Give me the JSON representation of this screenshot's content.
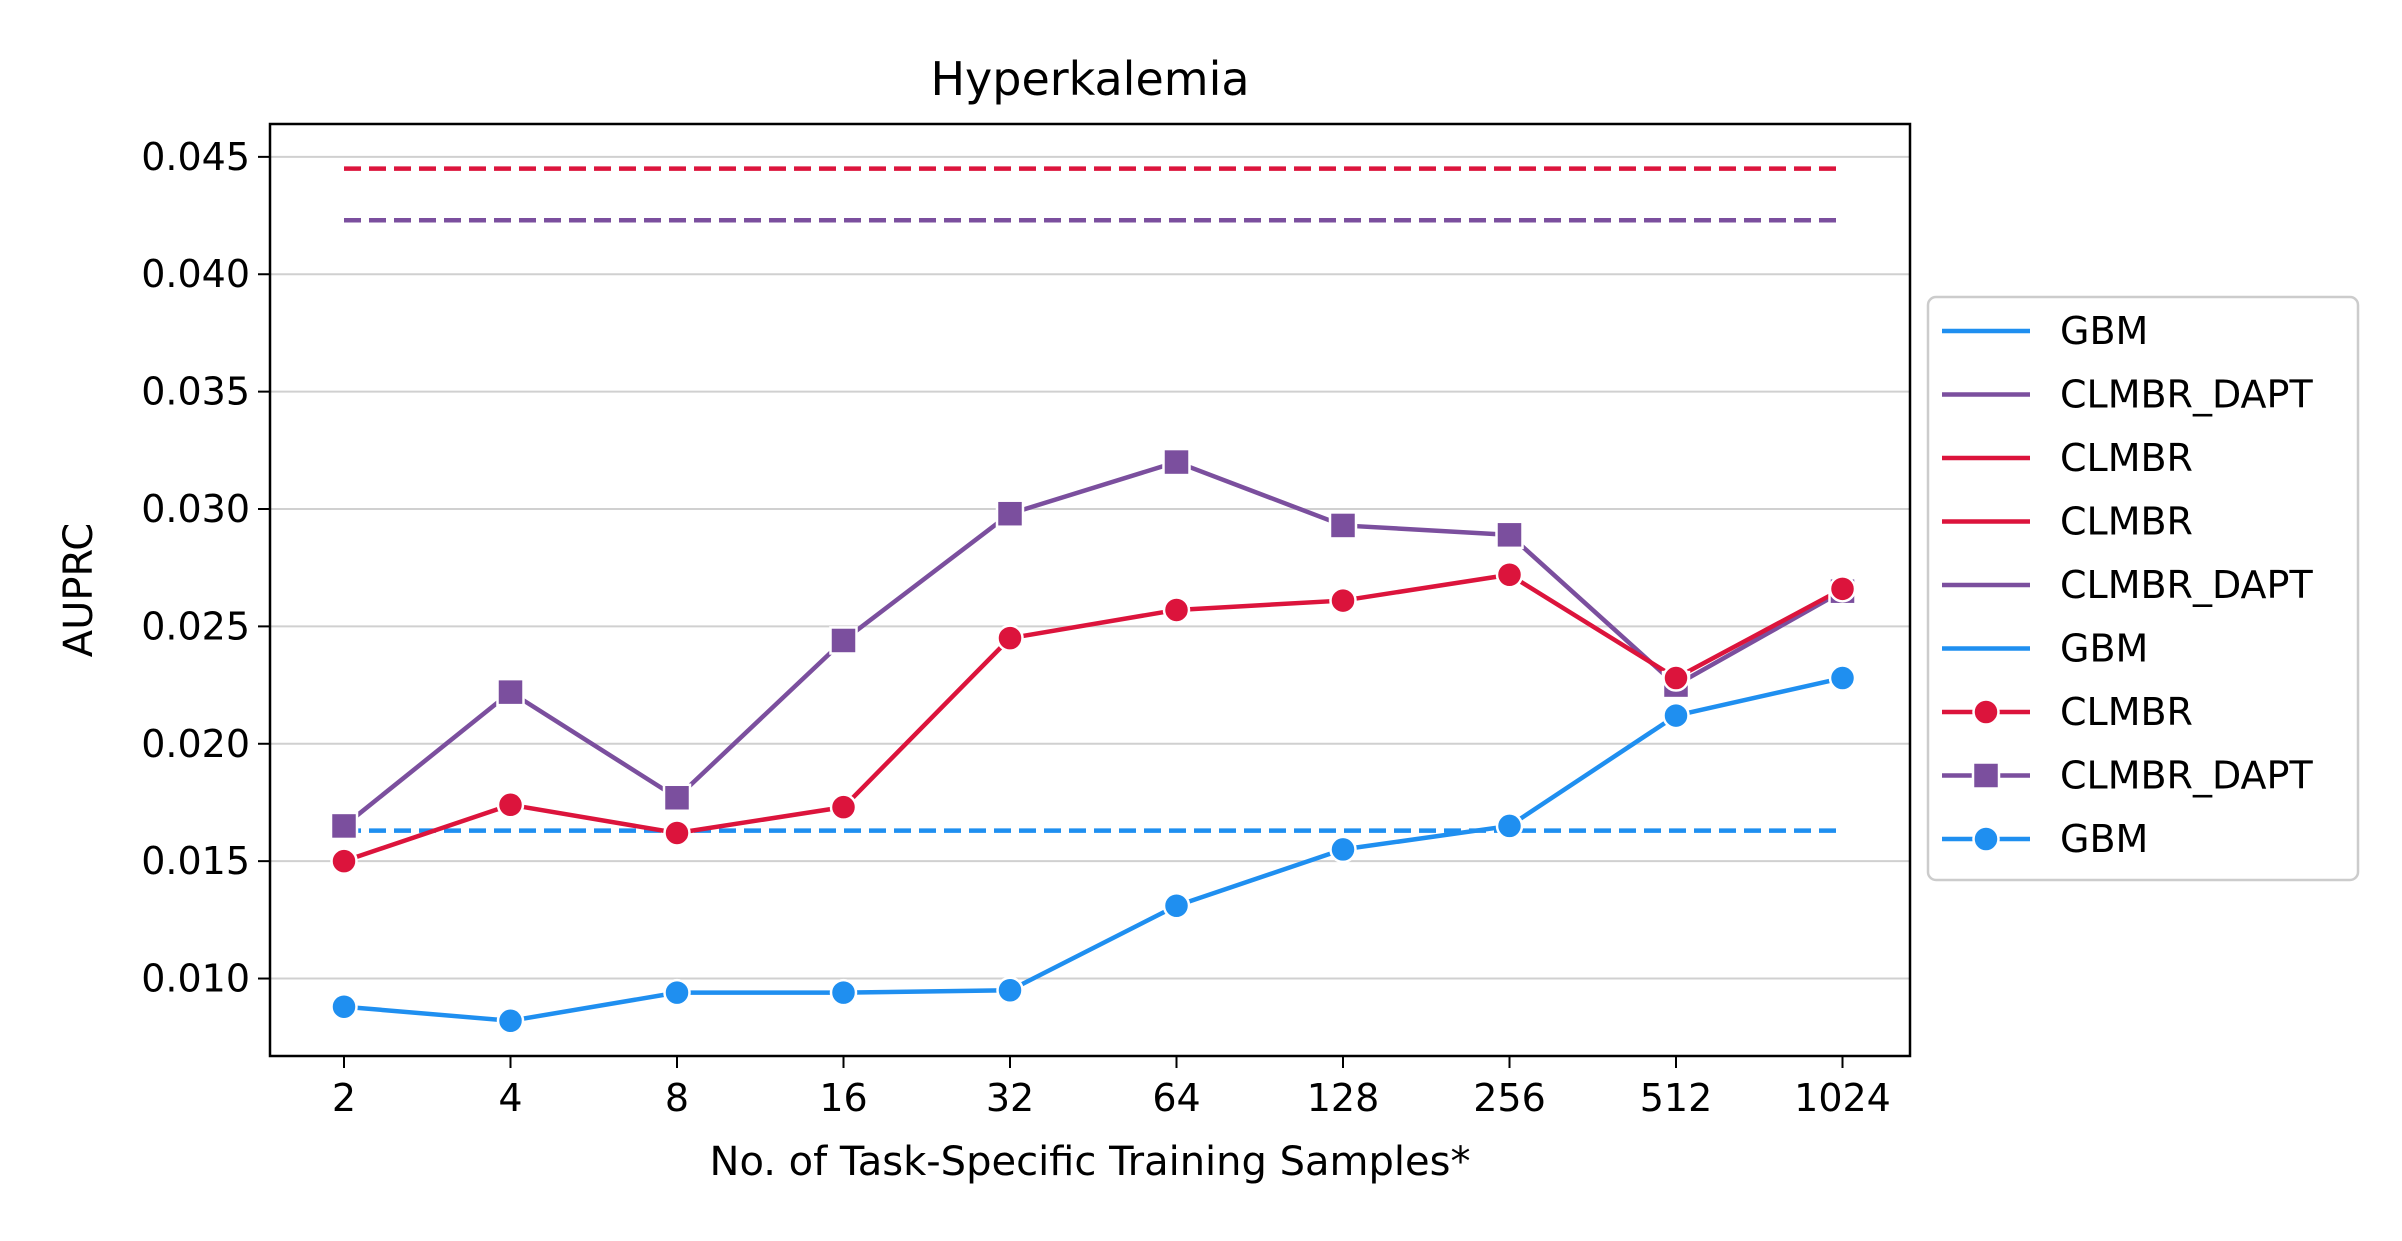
{
  "chart_data": {
    "type": "line",
    "title": "Hyperkalemia",
    "xlabel": "No. of Task-Specific Training Samples*",
    "ylabel": "AUPRC",
    "categories": [
      "2",
      "4",
      "8",
      "16",
      "32",
      "64",
      "128",
      "256",
      "512",
      "1024"
    ],
    "ylim": [
      0.0067,
      0.0464
    ],
    "y_ticks": [
      "0.010",
      "0.015",
      "0.020",
      "0.025",
      "0.030",
      "0.035",
      "0.040",
      "0.045"
    ],
    "grid": "horizontal",
    "legend_position": "right",
    "colors": {
      "GBM": "#1f8ff0",
      "CLMBR": "#dc143c",
      "CLMBR_DAPT": "#7b4f9e"
    },
    "reference_lines": [
      {
        "model": "CLMBR",
        "value": 0.0445
      },
      {
        "model": "CLMBR_DAPT",
        "value": 0.0423
      },
      {
        "model": "GBM",
        "value": 0.0163
      }
    ],
    "series": [
      {
        "name": "CLMBR_DAPT",
        "marker": "square",
        "values": [
          0.0165,
          0.0222,
          0.0177,
          0.0244,
          0.0298,
          0.032,
          0.0293,
          0.0289,
          0.0225,
          0.0265
        ]
      },
      {
        "name": "CLMBR",
        "marker": "circle",
        "values": [
          0.015,
          0.0174,
          0.0162,
          0.0173,
          0.0245,
          0.0257,
          0.0261,
          0.0272,
          0.0228,
          0.0266
        ]
      },
      {
        "name": "GBM",
        "marker": "circle",
        "values": [
          0.0088,
          0.0082,
          0.0094,
          0.0094,
          0.0095,
          0.0131,
          0.0155,
          0.0165,
          0.0212,
          0.0228
        ]
      }
    ],
    "legend": [
      {
        "label": "GBM",
        "style": "line",
        "model": "GBM"
      },
      {
        "label": "CLMBR_DAPT",
        "style": "line",
        "model": "CLMBR_DAPT"
      },
      {
        "label": "CLMBR",
        "style": "line",
        "model": "CLMBR"
      },
      {
        "label": "CLMBR",
        "style": "line",
        "model": "CLMBR"
      },
      {
        "label": "CLMBR_DAPT",
        "style": "line",
        "model": "CLMBR_DAPT"
      },
      {
        "label": "GBM",
        "style": "line",
        "model": "GBM"
      },
      {
        "label": "CLMBR",
        "style": "circle",
        "model": "CLMBR"
      },
      {
        "label": "CLMBR_DAPT",
        "style": "square",
        "model": "CLMBR_DAPT"
      },
      {
        "label": "GBM",
        "style": "circle",
        "model": "GBM"
      }
    ]
  }
}
